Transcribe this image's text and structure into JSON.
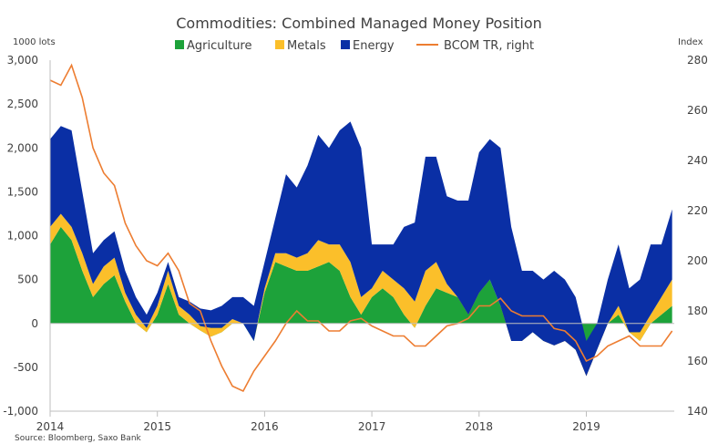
{
  "chart_data": {
    "type": "area",
    "title": "Commodities: Combined Managed Money Position",
    "ylabel": "1000 lots",
    "ylabel_right": "Index",
    "source": "Source: Bloomberg, Saxo Bank",
    "ylim": [
      -1000,
      3000
    ],
    "ylim_right": [
      140,
      280
    ],
    "yticks": [
      "3,000",
      "2,500",
      "2,000",
      "1,500",
      "1,000",
      "500",
      "0",
      "-500",
      "-1,000"
    ],
    "yticks_right": [
      "280",
      "260",
      "240",
      "220",
      "200",
      "180",
      "160",
      "140"
    ],
    "xlim": [
      2014.0,
      2019.82
    ],
    "x_tick_labels": [
      "2014",
      "2015",
      "2016",
      "2017",
      "2018",
      "2019"
    ],
    "legend_position": "top",
    "grid": false,
    "colors": {
      "Agriculture": "#1da23a",
      "Metals": "#fbbf2a",
      "Energy": "#0a2fa5",
      "BCOM TR, right": "#ed7d31"
    },
    "x": [
      2014.0,
      2014.1,
      2014.2,
      2014.3,
      2014.4,
      2014.5,
      2014.6,
      2014.7,
      2014.8,
      2014.9,
      2015.0,
      2015.1,
      2015.2,
      2015.3,
      2015.4,
      2015.5,
      2015.6,
      2015.7,
      2015.8,
      2015.9,
      2016.0,
      2016.1,
      2016.2,
      2016.3,
      2016.4,
      2016.5,
      2016.6,
      2016.7,
      2016.8,
      2016.9,
      2017.0,
      2017.1,
      2017.2,
      2017.3,
      2017.4,
      2017.5,
      2017.6,
      2017.7,
      2017.8,
      2017.9,
      2018.0,
      2018.1,
      2018.2,
      2018.3,
      2018.4,
      2018.5,
      2018.6,
      2018.7,
      2018.8,
      2018.9,
      2019.0,
      2019.1,
      2019.2,
      2019.3,
      2019.4,
      2019.5,
      2019.6,
      2019.7,
      2019.8
    ],
    "series": [
      {
        "name": "Agriculture",
        "values": [
          900,
          1100,
          950,
          600,
          300,
          450,
          550,
          250,
          0,
          -100,
          100,
          450,
          100,
          0,
          -80,
          -150,
          -100,
          0,
          0,
          -200,
          350,
          700,
          650,
          600,
          600,
          650,
          700,
          600,
          300,
          100,
          300,
          400,
          300,
          100,
          -50,
          200,
          400,
          350,
          300,
          300,
          400,
          500,
          200,
          -100,
          -100,
          -100,
          -200,
          -200,
          -100,
          -300,
          -400,
          -200,
          0,
          100,
          -100,
          -200,
          0,
          100,
          200
        ]
      },
      {
        "name": "Metals",
        "values": [
          200,
          150,
          150,
          200,
          150,
          200,
          200,
          100,
          100,
          50,
          100,
          150,
          100,
          100,
          50,
          100,
          50,
          50,
          0,
          0,
          50,
          100,
          150,
          150,
          200,
          300,
          200,
          300,
          400,
          200,
          100,
          200,
          200,
          300,
          300,
          400,
          300,
          100,
          0,
          -200,
          -50,
          0,
          0,
          -100,
          -100,
          0,
          0,
          -50,
          -100,
          0,
          -200,
          -100,
          0,
          100,
          0,
          100,
          100,
          200,
          300
        ]
      },
      {
        "name": "Energy",
        "values": [
          1000,
          1000,
          1100,
          700,
          350,
          300,
          300,
          250,
          200,
          150,
          150,
          100,
          100,
          150,
          200,
          200,
          250,
          250,
          300,
          400,
          300,
          400,
          900,
          800,
          1000,
          1200,
          1100,
          1300,
          1600,
          1700,
          500,
          300,
          400,
          700,
          900,
          1300,
          1200,
          1000,
          1100,
          1300,
          1600,
          1600,
          1800,
          1300,
          800,
          700,
          700,
          850,
          700,
          600,
          400,
          300,
          500,
          700,
          500,
          600,
          800,
          600,
          800
        ]
      },
      {
        "name": "BCOM TR, right",
        "axis": "right",
        "values": [
          272,
          270,
          278,
          265,
          245,
          235,
          230,
          215,
          206,
          200,
          198,
          203,
          196,
          183,
          180,
          168,
          158,
          150,
          148,
          156,
          162,
          168,
          175,
          180,
          176,
          176,
          172,
          172,
          176,
          177,
          174,
          172,
          170,
          170,
          166,
          166,
          170,
          174,
          175,
          177,
          182,
          182,
          185,
          180,
          178,
          178,
          178,
          173,
          172,
          168,
          160,
          162,
          166,
          168,
          170,
          166,
          166,
          166,
          172
        ]
      }
    ]
  }
}
